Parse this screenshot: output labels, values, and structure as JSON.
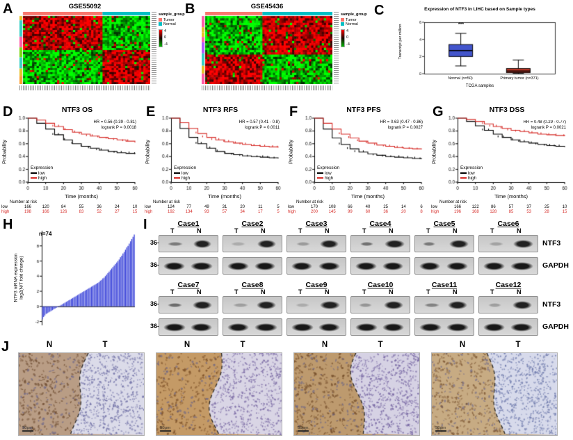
{
  "panels": {
    "A": {
      "label": "A",
      "title": "GSE55092",
      "heatmap": {
        "cols": 56,
        "rows": 34,
        "colSplit": 0.62,
        "rowSplit": 0.5,
        "pattern": [
          [
            1,
            -1
          ],
          [
            -1,
            1
          ]
        ],
        "annColors": [
          "#f8766d",
          "#00bfc4"
        ],
        "seed": 7
      },
      "legend": {
        "title": "sample_group",
        "items": [
          {
            "label": "Tumor",
            "color": "#f8766d"
          },
          {
            "label": "Normal",
            "color": "#00bfc4"
          }
        ],
        "scale_labels": [
          "4",
          "0",
          "-4"
        ]
      }
    },
    "B": {
      "label": "B",
      "title": "GSE45436",
      "heatmap": {
        "cols": 60,
        "rows": 30,
        "colSplit": 0.45,
        "rowSplit": 0.55,
        "pattern": [
          [
            -1,
            1
          ],
          [
            1,
            -1
          ]
        ],
        "annColors": [
          "#f8766d",
          "#00bfc4"
        ],
        "seed": 13
      },
      "legend": {
        "title": "sample_group",
        "items": [
          {
            "label": "Tumor",
            "color": "#f8766d"
          },
          {
            "label": "Normal",
            "color": "#00bfc4"
          }
        ],
        "scale_labels": [
          "4",
          "0",
          "-4"
        ]
      }
    },
    "C": {
      "label": "C",
      "title": "Expression of NTF3 in LIHC based on Sample types",
      "ylabel": "Transcript per million",
      "xlabel": "TCGA samples",
      "significance": "***",
      "chart_data": {
        "type": "box",
        "ylim": [
          0,
          6
        ],
        "yticks": [
          0,
          2,
          4,
          6
        ],
        "groups": [
          {
            "label": "Normal (n=50)",
            "color": "#4355cc",
            "whisker_low": 0.9,
            "q1": 2.0,
            "median": 2.7,
            "q3": 3.4,
            "whisker_high": 4.7
          },
          {
            "label": "Primary tumor (n=371)",
            "color": "#c43b2a",
            "whisker_low": 0.02,
            "q1": 0.12,
            "median": 0.3,
            "q3": 0.6,
            "whisker_high": 1.6
          }
        ]
      }
    },
    "km": {
      "xlabel": "Time (months)",
      "ylabel": "Probability",
      "xticks": [
        0,
        10,
        20,
        30,
        40,
        50,
        60
      ],
      "yticks": [
        "0.0",
        "0.2",
        "0.4",
        "0.6",
        "0.8",
        "1.0"
      ],
      "legend_title": "Expression",
      "series": [
        {
          "name": "low",
          "color": "#000000"
        },
        {
          "name": "high",
          "color": "#d62b27"
        }
      ],
      "risk_title": "Number at risk",
      "plots": [
        {
          "label": "D",
          "title": "NTF3 OS",
          "hr_text": "HR = 0.56 (0.39 - 0.81)",
          "p_text": "logrank P = 0.0018",
          "chart_data": {
            "type": "line",
            "x": [
              0,
              5,
              10,
              15,
              20,
              25,
              30,
              35,
              40,
              45,
              50,
              55,
              60
            ],
            "series": [
              {
                "name": "low",
                "values": [
                  1.0,
                  0.92,
                  0.83,
                  0.74,
                  0.66,
                  0.6,
                  0.56,
                  0.53,
                  0.5,
                  0.48,
                  0.46,
                  0.45,
                  0.44
                ]
              },
              {
                "name": "high",
                "values": [
                  1.0,
                  0.97,
                  0.92,
                  0.87,
                  0.82,
                  0.78,
                  0.75,
                  0.72,
                  0.7,
                  0.68,
                  0.66,
                  0.64,
                  0.62
                ]
              }
            ]
          },
          "risk": {
            "low": [
              166,
              120,
              84,
              55,
              36,
              24,
              10
            ],
            "high": [
              198,
              166,
              126,
              83,
              52,
              27,
              15
            ]
          }
        },
        {
          "label": "E",
          "title": "NTF3 RFS",
          "hr_text": "HR = 0.57 (0.41 - 0.8)",
          "p_text": "logrank P = 0.0011",
          "chart_data": {
            "type": "line",
            "x": [
              0,
              5,
              10,
              15,
              20,
              25,
              30,
              35,
              40,
              45,
              50,
              55,
              60
            ],
            "series": [
              {
                "name": "low",
                "values": [
                  1.0,
                  0.84,
                  0.7,
                  0.6,
                  0.53,
                  0.48,
                  0.45,
                  0.43,
                  0.41,
                  0.4,
                  0.39,
                  0.38,
                  0.37
                ]
              },
              {
                "name": "high",
                "values": [
                  1.0,
                  0.93,
                  0.84,
                  0.76,
                  0.7,
                  0.66,
                  0.63,
                  0.61,
                  0.59,
                  0.57,
                  0.56,
                  0.55,
                  0.54
                ]
              }
            ]
          },
          "risk": {
            "low": [
              124,
              77,
              49,
              31,
              20,
              11,
              5
            ],
            "high": [
              192,
              134,
              93,
              57,
              34,
              17,
              5
            ]
          }
        },
        {
          "label": "F",
          "title": "NTF3 PFS",
          "hr_text": "HR = 0.63 (0.47 - 0.86)",
          "p_text": "logrank P = 0.0027",
          "chart_data": {
            "type": "line",
            "x": [
              0,
              5,
              10,
              15,
              20,
              25,
              30,
              35,
              40,
              45,
              50,
              55,
              60
            ],
            "series": [
              {
                "name": "low",
                "values": [
                  1.0,
                  0.83,
                  0.69,
                  0.59,
                  0.52,
                  0.47,
                  0.44,
                  0.42,
                  0.4,
                  0.39,
                  0.38,
                  0.37,
                  0.36
                ]
              },
              {
                "name": "high",
                "values": [
                  1.0,
                  0.92,
                  0.83,
                  0.75,
                  0.69,
                  0.64,
                  0.61,
                  0.58,
                  0.56,
                  0.54,
                  0.53,
                  0.52,
                  0.51
                ]
              }
            ]
          },
          "risk": {
            "low": [
              170,
              108,
              66,
              40,
              25,
              14,
              6
            ],
            "high": [
              200,
              145,
              99,
              60,
              36,
              20,
              8
            ]
          }
        },
        {
          "label": "G",
          "title": "NTF3 DSS",
          "hr_text": "HR = 0.48 (0.29 - 0.77)",
          "p_text": "logrank P = 0.0021",
          "chart_data": {
            "type": "line",
            "x": [
              0,
              5,
              10,
              15,
              20,
              25,
              30,
              35,
              40,
              45,
              50,
              55,
              60
            ],
            "series": [
              {
                "name": "low",
                "values": [
                  1.0,
                  0.95,
                  0.88,
                  0.81,
                  0.75,
                  0.7,
                  0.66,
                  0.63,
                  0.61,
                  0.59,
                  0.57,
                  0.56,
                  0.55
                ]
              },
              {
                "name": "high",
                "values": [
                  1.0,
                  0.98,
                  0.95,
                  0.91,
                  0.87,
                  0.84,
                  0.81,
                  0.79,
                  0.77,
                  0.75,
                  0.74,
                  0.73,
                  0.72
                ]
              }
            ]
          },
          "risk": {
            "low": [
              166,
              122,
              86,
              57,
              37,
              25,
              10
            ],
            "high": [
              196,
              168,
              128,
              85,
              53,
              28,
              15
            ]
          }
        }
      ]
    },
    "H": {
      "label": "H",
      "annotation": "n=74",
      "ylabel_line1": "NTF3 mRNA  expression",
      "ylabel_line2": "log2(N/T fold change)",
      "chart_data": {
        "type": "bar",
        "bar_color": "#2b35d6",
        "ylim": [
          -2.5,
          10
        ],
        "yticks": [
          -2,
          0,
          2,
          4,
          6,
          8
        ],
        "values": [
          -1.7,
          -1.4,
          -1.2,
          -1.0,
          -0.9,
          -0.8,
          -0.7,
          -0.6,
          -0.5,
          -0.4,
          -0.3,
          -0.2,
          -0.1,
          0.05,
          0.1,
          0.2,
          0.3,
          0.4,
          0.5,
          0.6,
          0.7,
          0.8,
          0.9,
          1.0,
          1.1,
          1.2,
          1.3,
          1.4,
          1.5,
          1.6,
          1.7,
          1.8,
          1.9,
          2.0,
          2.1,
          2.2,
          2.3,
          2.4,
          2.5,
          2.6,
          2.7,
          2.8,
          2.9,
          3.0,
          3.1,
          3.2,
          3.4,
          3.5,
          3.7,
          3.8,
          4.0,
          4.2,
          4.4,
          4.6,
          4.8,
          5.0,
          5.2,
          5.4,
          5.6,
          5.8,
          6.0,
          6.2,
          6.5,
          6.7,
          7.0,
          7.2,
          7.5,
          7.8,
          8.0,
          8.3,
          8.6,
          8.9,
          9.2,
          9.5
        ]
      }
    },
    "I": {
      "label": "I",
      "marker": "36-",
      "lane_labels": [
        "T",
        "N"
      ],
      "target_labels": [
        "NTF3",
        "GAPDH"
      ],
      "rows": [
        [
          "Case1",
          "Case2",
          "Case3",
          "Case4",
          "Case5",
          "Case6"
        ],
        [
          "Case7",
          "Case8",
          "Case9",
          "Case10",
          "Case11",
          "Case12"
        ]
      ]
    },
    "J": {
      "label": "J",
      "images": [
        {
          "left_label": "N",
          "right_label": "T",
          "scale_bar": "50μm",
          "left_base": "#b99d85",
          "left_dot": "#6e4c31",
          "right_base": "#dbdbe9",
          "right_dot": "#7878ab",
          "split": 0.5,
          "seed": 21
        },
        {
          "left_label": "N",
          "right_label": "T",
          "scale_bar": "50μm",
          "left_base": "#c49a66",
          "left_dot": "#7a4e26",
          "right_base": "#d9d5e5",
          "right_dot": "#8070a8",
          "split": 0.52,
          "seed": 22
        },
        {
          "left_label": "N",
          "right_label": "T",
          "scale_bar": "50μm",
          "left_base": "#bd9a6e",
          "left_dot": "#744d2a",
          "right_base": "#d6d2e4",
          "right_dot": "#7a6aa5",
          "split": 0.55,
          "seed": 23
        },
        {
          "left_label": "N",
          "right_label": "T",
          "scale_bar": "50μm",
          "left_base": "#c7ab83",
          "left_dot": "#7c5633",
          "right_base": "#d7daeb",
          "right_dot": "#7580b0",
          "split": 0.5,
          "seed": 24
        }
      ]
    }
  }
}
